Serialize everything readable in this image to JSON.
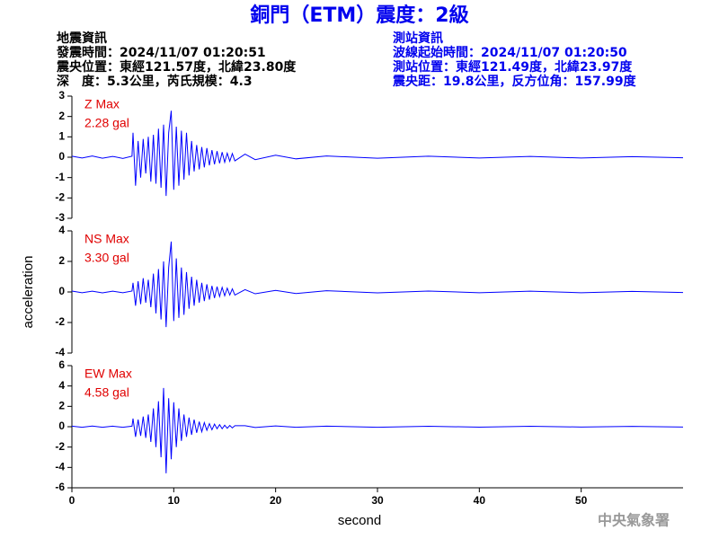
{
  "header": {
    "title": "銅門（ETM）震度：2級",
    "event": {
      "title": "地震資訊",
      "lines": [
        "發震時間：2024/11/07 01:20:51",
        "震央位置：東經121.57度，北緯23.80度",
        "深　度：5.3公里，芮氏規模：4.3"
      ]
    },
    "station": {
      "title": "測站資訊",
      "lines": [
        "波線起始時間：2024/11/07 01:20:50",
        "測站位置：東經121.49度，北緯23.97度",
        "震央距：19.8公里，反方位角：157.99度"
      ]
    }
  },
  "chart_data": [
    {
      "type": "line",
      "title": "Z Max",
      "annotation": "2.28 gal",
      "label_color": "#e00000",
      "color": "#0000ff",
      "xlim": [
        0,
        60
      ],
      "ylim": [
        -3,
        3
      ],
      "yticks": [
        -3,
        -2,
        -1,
        0,
        1,
        2,
        3
      ],
      "x": [
        0,
        1,
        2,
        3,
        4,
        5,
        5.9,
        6,
        6.25,
        6.5,
        6.75,
        7,
        7.25,
        7.5,
        7.75,
        8,
        8.25,
        8.5,
        8.75,
        9,
        9.25,
        9.5,
        9.75,
        10,
        10.25,
        10.5,
        10.75,
        11,
        11.25,
        11.5,
        11.75,
        12,
        12.25,
        12.5,
        12.75,
        13,
        13.25,
        13.5,
        13.75,
        14,
        14.25,
        14.5,
        14.75,
        15,
        15.25,
        15.5,
        15.75,
        16,
        17,
        18,
        20,
        22,
        25,
        30,
        35,
        40,
        45,
        50,
        55,
        60
      ],
      "values": [
        0.05,
        -0.04,
        0.06,
        -0.05,
        0.04,
        -0.06,
        0.05,
        1.2,
        -1.4,
        0.8,
        -1.0,
        0.9,
        -0.8,
        1.0,
        -1.2,
        1.1,
        -1.3,
        1.4,
        -1.5,
        1.6,
        -1.9,
        1.2,
        2.28,
        -1.6,
        1.5,
        -1.4,
        1.3,
        -1.1,
        1.2,
        -0.9,
        0.8,
        -0.7,
        0.6,
        -0.6,
        0.5,
        -0.5,
        0.45,
        -0.4,
        0.35,
        -0.35,
        0.3,
        -0.3,
        0.25,
        -0.25,
        0.2,
        -0.2,
        0.18,
        -0.18,
        0.15,
        -0.12,
        0.1,
        -0.08,
        0.06,
        -0.05,
        0.05,
        -0.04,
        0.04,
        -0.04,
        0.03,
        -0.03
      ]
    },
    {
      "type": "line",
      "title": "NS Max",
      "annotation": "3.30 gal",
      "label_color": "#e00000",
      "color": "#0000ff",
      "ylabel": "acceleration",
      "xlim": [
        0,
        60
      ],
      "ylim": [
        -4,
        4
      ],
      "yticks": [
        -4,
        -2,
        0,
        2,
        4
      ],
      "x": [
        0,
        1,
        2,
        3,
        4,
        5,
        5.9,
        6,
        6.25,
        6.5,
        6.75,
        7,
        7.25,
        7.5,
        7.75,
        8,
        8.25,
        8.5,
        8.75,
        9,
        9.25,
        9.5,
        9.75,
        10,
        10.25,
        10.5,
        10.75,
        11,
        11.25,
        11.5,
        11.75,
        12,
        12.25,
        12.5,
        12.75,
        13,
        13.25,
        13.5,
        13.75,
        14,
        14.25,
        14.5,
        14.75,
        15,
        15.25,
        15.5,
        15.75,
        16,
        17,
        18,
        20,
        22,
        25,
        30,
        35,
        40,
        45,
        50,
        55,
        60
      ],
      "values": [
        0.06,
        -0.05,
        0.05,
        -0.06,
        0.05,
        -0.05,
        0.06,
        0.6,
        -0.9,
        0.7,
        -0.8,
        0.9,
        -0.7,
        0.8,
        -1.0,
        1.2,
        -1.4,
        1.5,
        -1.8,
        2.0,
        -2.3,
        1.6,
        3.3,
        -1.9,
        2.2,
        -1.7,
        1.6,
        -1.5,
        1.3,
        -1.1,
        1.0,
        -0.9,
        0.8,
        -0.7,
        0.6,
        -0.6,
        0.5,
        -0.5,
        0.4,
        -0.4,
        0.35,
        -0.3,
        0.3,
        -0.25,
        0.25,
        -0.2,
        0.2,
        -0.2,
        0.15,
        -0.12,
        0.1,
        -0.1,
        0.08,
        -0.06,
        0.06,
        -0.05,
        0.05,
        -0.05,
        0.04,
        -0.04
      ]
    },
    {
      "type": "line",
      "title": "EW Max",
      "annotation": "4.58 gal",
      "label_color": "#e00000",
      "color": "#0000ff",
      "xlabel": "second",
      "xlim": [
        0,
        60
      ],
      "xticks": [
        0,
        10,
        20,
        30,
        40,
        50
      ],
      "ylim": [
        -6,
        6
      ],
      "yticks": [
        -6,
        -4,
        -2,
        0,
        2,
        4,
        6
      ],
      "x": [
        0,
        1,
        2,
        3,
        4,
        5,
        5.9,
        6,
        6.25,
        6.5,
        6.75,
        7,
        7.25,
        7.5,
        7.75,
        8,
        8.25,
        8.5,
        8.75,
        9,
        9.25,
        9.5,
        9.75,
        10,
        10.25,
        10.5,
        10.75,
        11,
        11.25,
        11.5,
        11.75,
        12,
        12.25,
        12.5,
        12.75,
        13,
        13.25,
        13.5,
        13.75,
        14,
        14.25,
        14.5,
        14.75,
        15,
        15.25,
        15.5,
        15.75,
        16,
        17,
        18,
        20,
        22,
        25,
        30,
        35,
        40,
        45,
        50,
        55,
        60
      ],
      "values": [
        0.06,
        -0.05,
        0.07,
        -0.06,
        0.05,
        -0.06,
        0.05,
        0.8,
        -1.0,
        0.7,
        -0.9,
        1.0,
        -1.1,
        1.2,
        -1.5,
        1.8,
        -2.0,
        2.5,
        -3.0,
        3.8,
        -4.58,
        2.8,
        -3.2,
        2.4,
        -2.0,
        1.8,
        -1.4,
        1.2,
        -1.0,
        0.9,
        -0.8,
        0.7,
        -0.6,
        0.5,
        -0.5,
        0.4,
        -0.35,
        0.3,
        -0.3,
        0.25,
        -0.2,
        0.2,
        -0.2,
        0.15,
        -0.15,
        0.12,
        -0.12,
        0.1,
        0.1,
        -0.08,
        0.08,
        -0.06,
        0.05,
        -0.05,
        0.04,
        -0.04,
        0.04,
        -0.03,
        0.03,
        -0.03
      ]
    }
  ],
  "footer": "中央氣象署"
}
